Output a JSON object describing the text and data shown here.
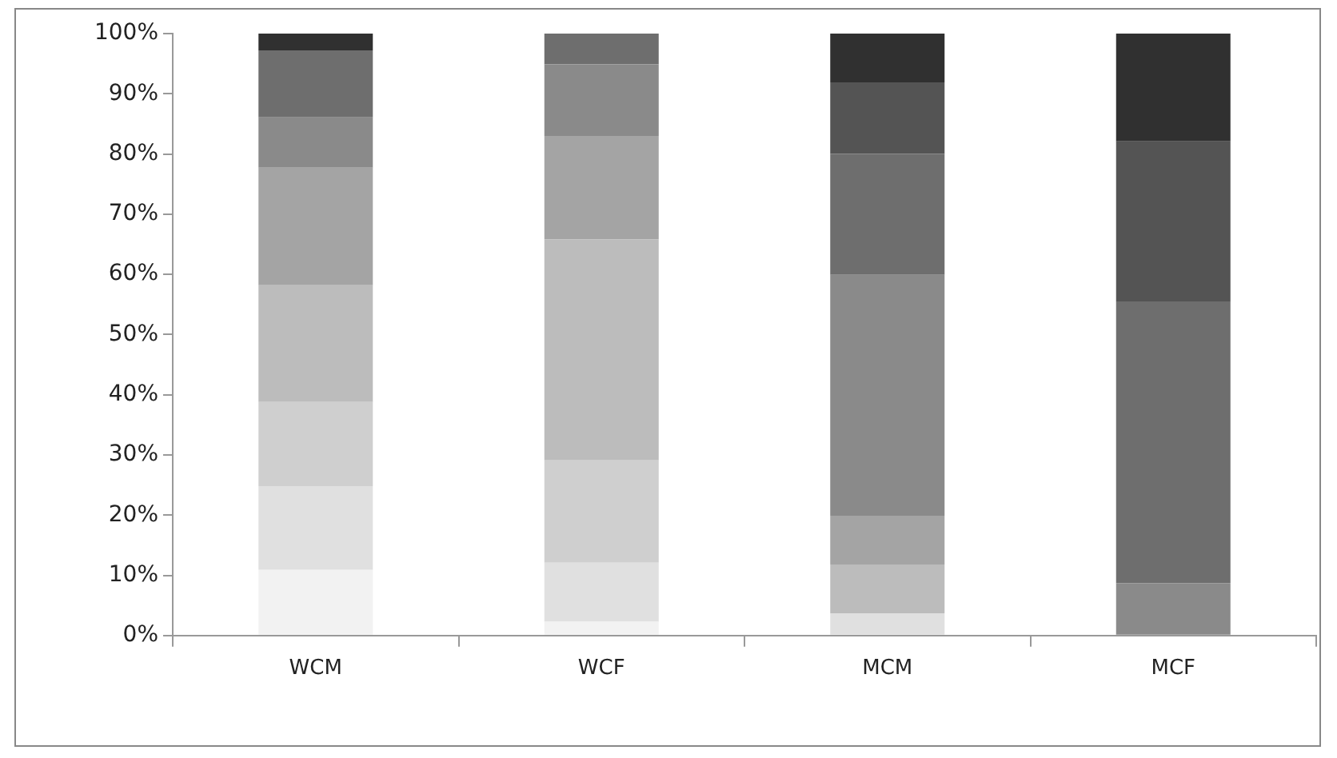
{
  "chart_data": {
    "type": "bar",
    "stacked": true,
    "categories": [
      "WCM",
      "WCF",
      "MCM",
      "MCF"
    ],
    "series": [
      {
        "color": "#f2f2f2",
        "values": [
          10.9,
          2.3,
          null,
          null
        ]
      },
      {
        "color": "#e0e0e0",
        "values": [
          13.9,
          9.8,
          3.7,
          null
        ]
      },
      {
        "color": "#cfcfcf",
        "values": [
          14.0,
          17.0,
          null,
          null
        ]
      },
      {
        "color": "#bcbcbc",
        "values": [
          19.4,
          36.7,
          8.1,
          null
        ]
      },
      {
        "color": "#a4a4a4",
        "values": [
          19.5,
          17.2,
          8.1,
          null
        ]
      },
      {
        "color": "#8a8a8a",
        "values": [
          8.4,
          11.9,
          40.0,
          8.7
        ]
      },
      {
        "color": "#6e6e6e",
        "values": [
          11.1,
          5.1,
          20.1,
          46.8
        ]
      },
      {
        "color": "#545454",
        "values": [
          null,
          null,
          11.9,
          26.6
        ]
      },
      {
        "color": "#303030",
        "values": [
          2.8,
          null,
          8.1,
          17.9
        ]
      }
    ],
    "ylim": [
      0,
      100
    ],
    "yticks": [
      {
        "value": 0,
        "label": "0%"
      },
      {
        "value": 10,
        "label": "10%"
      },
      {
        "value": 20,
        "label": "20%"
      },
      {
        "value": 30,
        "label": "30%"
      },
      {
        "value": 40,
        "label": "40%"
      },
      {
        "value": 50,
        "label": "50%"
      },
      {
        "value": 60,
        "label": "60%"
      },
      {
        "value": 70,
        "label": "70%"
      },
      {
        "value": 80,
        "label": "80%"
      },
      {
        "value": 90,
        "label": "90%"
      },
      {
        "value": 100,
        "label": "100%"
      }
    ],
    "grid": false,
    "legend": false
  }
}
